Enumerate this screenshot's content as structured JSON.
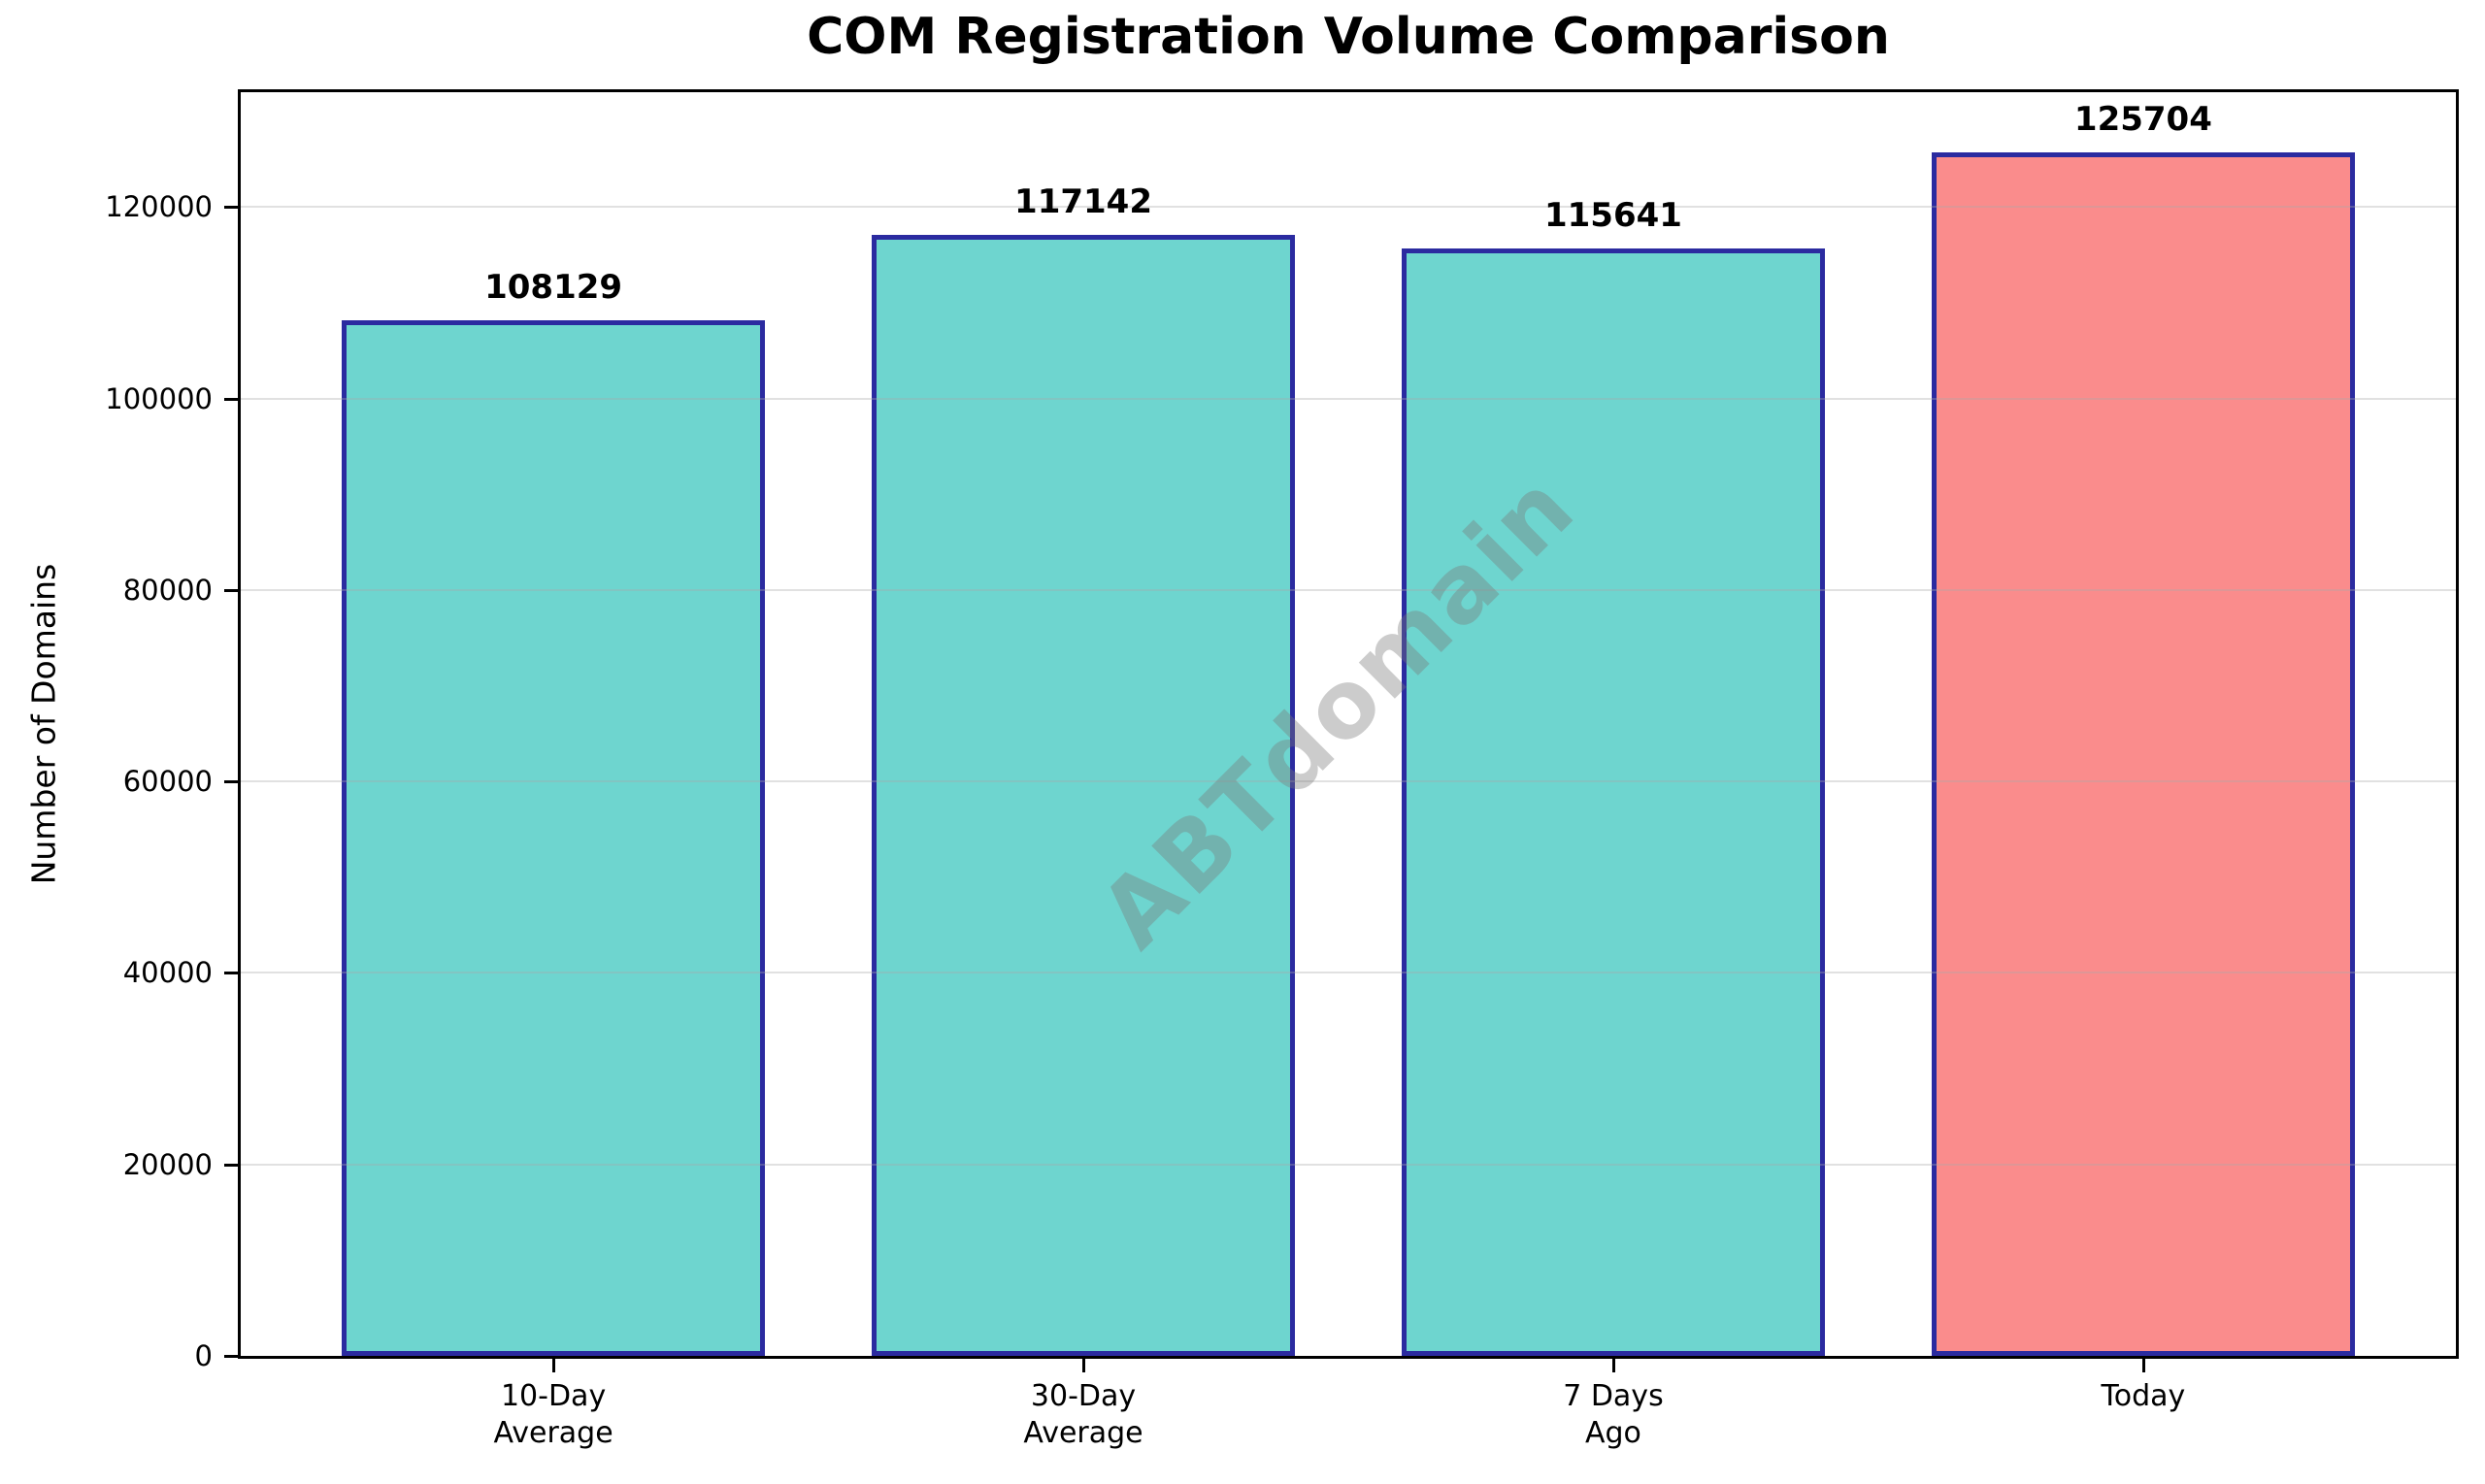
{
  "watermark_text": "ABTdomain",
  "chart_data": {
    "type": "bar",
    "title": "COM Registration Volume Comparison",
    "xlabel": "",
    "ylabel": "Number of Domains",
    "categories": [
      "10-Day\nAverage",
      "30-Day\nAverage",
      "7 Days\nAgo",
      "Today"
    ],
    "values": [
      108129,
      117142,
      115641,
      125704
    ],
    "bar_value_labels": [
      "108129",
      "117142",
      "115641",
      "125704"
    ],
    "bar_fill_colors": [
      "#6ED5CF",
      "#6ED5CF",
      "#6ED5CF",
      "#FA8C8C"
    ],
    "bar_edge_color": "#2B2BA0",
    "ylim": [
      0,
      132000
    ],
    "yticks": [
      0,
      20000,
      40000,
      60000,
      80000,
      100000,
      120000
    ],
    "grid": "horizontal-only",
    "legend_position": "none",
    "accent_teal": "#6ED5CF",
    "accent_salmon": "#FA8C8C"
  }
}
